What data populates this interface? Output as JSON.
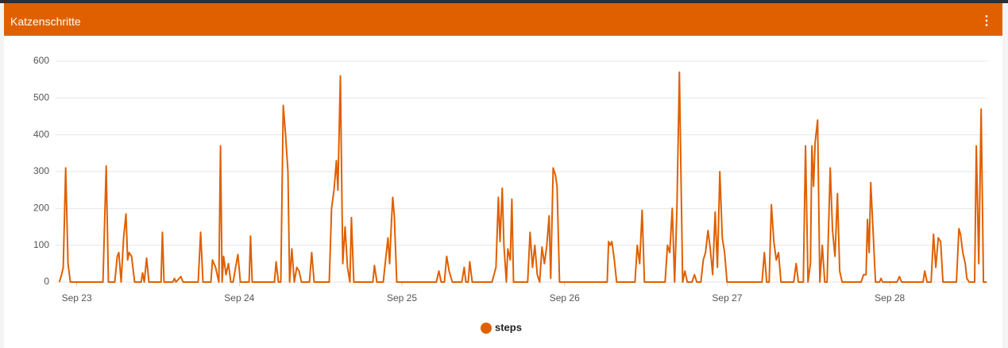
{
  "chart_data": {
    "type": "line",
    "title": "Katzenschritte",
    "x": [
      -0.107,
      -0.093,
      -0.083,
      -0.068,
      -0.054,
      -0.039,
      0.161,
      0.181,
      0.195,
      0.234,
      0.249,
      0.259,
      0.273,
      0.288,
      0.303,
      0.313,
      0.322,
      0.337,
      0.356,
      0.396,
      0.405,
      0.415,
      0.43,
      0.444,
      0.518,
      0.527,
      0.537,
      0.591,
      0.601,
      0.61,
      0.64,
      0.654,
      0.747,
      0.762,
      0.776,
      0.825,
      0.835,
      0.854,
      0.874,
      0.884,
      0.894,
      0.903,
      0.918,
      0.933,
      0.947,
      0.962,
      0.977,
      0.991,
      1.006,
      1.06,
      1.069,
      1.079,
      1.216,
      1.226,
      1.24,
      1.255,
      1.27,
      1.284,
      1.299,
      1.309,
      1.323,
      1.338,
      1.353,
      1.367,
      1.382,
      1.431,
      1.445,
      1.46,
      1.553,
      1.567,
      1.582,
      1.597,
      1.606,
      1.621,
      1.636,
      1.65,
      1.665,
      1.68,
      1.689,
      1.704,
      1.821,
      1.831,
      1.846,
      1.885,
      1.899,
      1.914,
      1.924,
      1.934,
      1.943,
      1.953,
      1.968,
      2.212,
      2.227,
      2.241,
      2.261,
      2.275,
      2.29,
      2.31,
      2.368,
      2.383,
      2.393,
      2.407,
      2.417,
      2.432,
      2.554,
      2.578,
      2.593,
      2.603,
      2.617,
      2.627,
      2.642,
      2.651,
      2.666,
      2.676,
      2.686,
      2.7,
      2.773,
      2.788,
      2.803,
      2.817,
      2.832,
      2.847,
      2.861,
      2.876,
      2.891,
      2.905,
      2.915,
      2.93,
      2.944,
      2.954,
      2.969,
      3.262,
      3.271,
      3.281,
      3.291,
      3.306,
      3.32,
      3.433,
      3.447,
      3.462,
      3.477,
      3.491,
      3.618,
      3.633,
      3.647,
      3.662,
      3.677,
      3.691,
      3.706,
      3.726,
      3.74,
      3.755,
      3.784,
      3.799,
      3.813,
      3.838,
      3.853,
      3.867,
      3.882,
      3.896,
      3.911,
      3.926,
      3.94,
      3.955,
      3.97,
      3.984,
      3.999,
      4.214,
      4.229,
      4.243,
      4.258,
      4.272,
      4.287,
      4.302,
      4.316,
      4.331,
      4.409,
      4.424,
      4.438,
      4.468,
      4.482,
      4.497,
      4.512,
      4.521,
      4.531,
      4.541,
      4.556,
      4.57,
      4.585,
      4.6,
      4.614,
      4.634,
      4.648,
      4.663,
      4.678,
      4.692,
      4.707,
      4.824,
      4.839,
      4.854,
      4.863,
      4.873,
      4.883,
      4.897,
      4.912,
      4.937,
      4.946,
      4.956,
      5.044,
      5.059,
      5.073,
      5.205,
      5.215,
      5.229,
      5.254,
      5.269,
      5.283,
      5.298,
      5.313,
      5.327,
      5.41,
      5.425,
      5.435,
      5.449,
      5.464,
      5.474,
      5.488,
      5.522,
      5.532,
      5.547,
      5.562,
      5.576,
      5.596
    ],
    "series": [
      {
        "name": "steps",
        "color": "#e06000",
        "values": [
          0,
          20,
          40,
          310,
          50,
          0,
          0,
          315,
          0,
          0,
          70,
          80,
          0,
          120,
          185,
          60,
          80,
          70,
          0,
          0,
          25,
          0,
          65,
          0,
          0,
          135,
          0,
          0,
          10,
          0,
          15,
          0,
          0,
          135,
          0,
          0,
          60,
          40,
          0,
          370,
          0,
          70,
          20,
          50,
          0,
          0,
          40,
          75,
          0,
          0,
          125,
          0,
          0,
          55,
          0,
          0,
          480,
          400,
          300,
          0,
          90,
          0,
          40,
          30,
          0,
          0,
          80,
          0,
          0,
          200,
          250,
          330,
          250,
          560,
          50,
          150,
          40,
          0,
          175,
          0,
          0,
          45,
          0,
          0,
          60,
          120,
          50,
          150,
          230,
          180,
          0,
          0,
          30,
          0,
          0,
          70,
          30,
          0,
          0,
          40,
          0,
          0,
          55,
          0,
          0,
          40,
          230,
          110,
          255,
          100,
          0,
          90,
          60,
          225,
          0,
          0,
          0,
          135,
          40,
          100,
          20,
          0,
          95,
          50,
          100,
          180,
          10,
          310,
          290,
          260,
          0,
          0,
          110,
          100,
          110,
          60,
          0,
          0,
          100,
          50,
          195,
          0,
          0,
          100,
          80,
          200,
          0,
          200,
          570,
          0,
          30,
          0,
          0,
          20,
          0,
          0,
          60,
          80,
          140,
          90,
          20,
          190,
          40,
          300,
          120,
          80,
          0,
          0,
          80,
          0,
          0,
          210,
          110,
          60,
          80,
          0,
          0,
          50,
          0,
          0,
          370,
          0,
          50,
          370,
          260,
          380,
          440,
          0,
          100,
          0,
          0,
          310,
          140,
          70,
          240,
          30,
          0,
          0,
          20,
          20,
          170,
          80,
          270,
          140,
          0,
          0,
          10,
          0,
          0,
          15,
          0,
          0,
          30,
          0,
          0,
          130,
          40,
          120,
          110,
          0,
          0,
          145,
          130,
          80,
          50,
          10,
          0,
          0,
          370,
          50,
          470,
          0,
          0
        ]
      }
    ],
    "xlim": [
      -0.13,
      5.6
    ],
    "xticks": [
      {
        "value": 0,
        "label": "Sep 23"
      },
      {
        "value": 1,
        "label": "Sep 24"
      },
      {
        "value": 2,
        "label": "Sep 25"
      },
      {
        "value": 3,
        "label": "Sep 26"
      },
      {
        "value": 4,
        "label": "Sep 27"
      },
      {
        "value": 5,
        "label": "Sep 28"
      }
    ],
    "ylim": [
      0,
      600
    ],
    "yticks": [
      0,
      100,
      200,
      300,
      400,
      500,
      600
    ],
    "grid": true
  }
}
